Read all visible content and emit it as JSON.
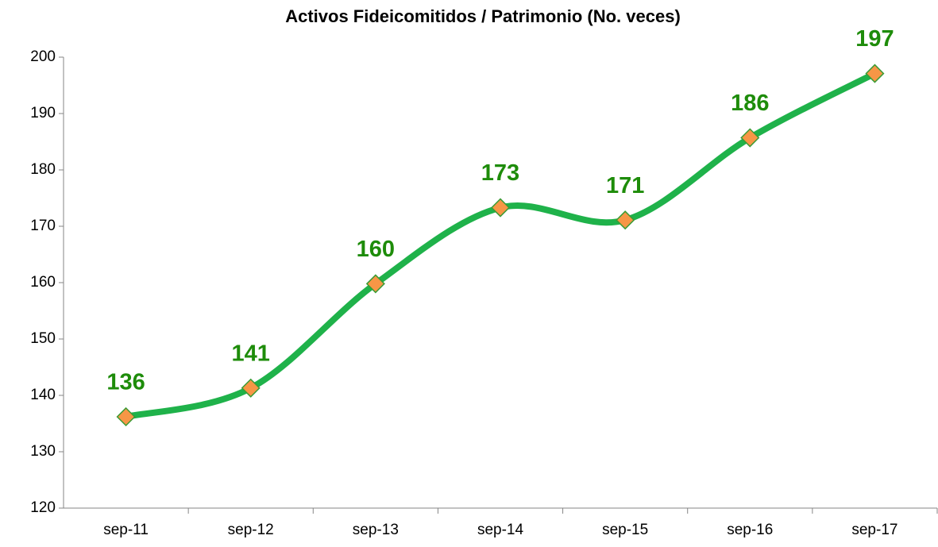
{
  "chart_data": {
    "type": "line",
    "title": "Activos Fideicomitidos / Patrimonio (No. veces)",
    "categories": [
      "sep-11",
      "sep-12",
      "sep-13",
      "sep-14",
      "sep-15",
      "sep-16",
      "sep-17"
    ],
    "values": [
      136.2,
      141.3,
      159.8,
      173.3,
      171.1,
      185.7,
      197.1
    ],
    "value_labels": [
      "136",
      "141",
      "160",
      "173",
      "171",
      "186",
      "197"
    ],
    "color": "#1fb24a",
    "marker_color": "#f79646",
    "label_color": "#1e8c0a",
    "ylim": [
      120,
      200
    ],
    "yticks": [
      120,
      130,
      140,
      150,
      160,
      170,
      180,
      190,
      200
    ],
    "grid": false,
    "smooth": true
  }
}
